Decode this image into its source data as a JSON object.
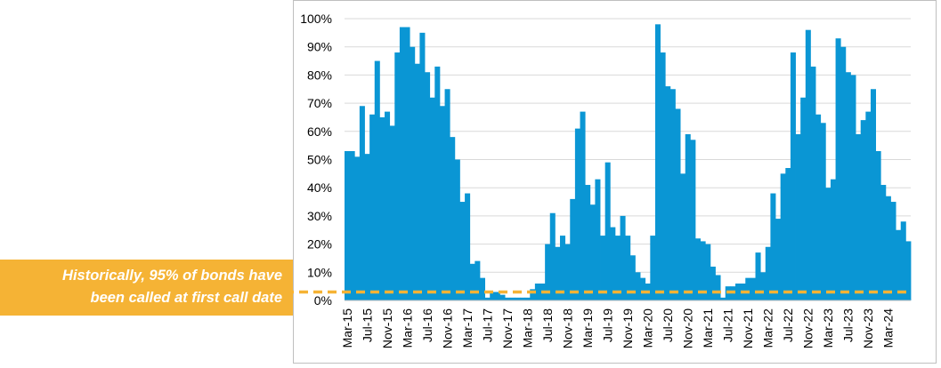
{
  "chart_data": {
    "type": "bar",
    "title": "",
    "xlabel": "",
    "ylabel": "",
    "ylim": [
      0,
      100
    ],
    "y_ticks": [
      "0%",
      "10%",
      "20%",
      "30%",
      "40%",
      "50%",
      "60%",
      "70%",
      "80%",
      "90%",
      "100%"
    ],
    "x_tick_labels": [
      "Mar-15",
      "Jul-15",
      "Nov-15",
      "Mar-16",
      "Jul-16",
      "Nov-16",
      "Mar-17",
      "Jul-17",
      "Nov-17",
      "Mar-18",
      "Jul-18",
      "Nov-18",
      "Mar-19",
      "Jul-19",
      "Nov-19",
      "Mar-20",
      "Jul-20",
      "Nov-20",
      "Mar-21",
      "Jul-21",
      "Nov-21",
      "Mar-22",
      "Jul-22",
      "Nov-22",
      "Mar-23",
      "Jul-23",
      "Nov-23",
      "Mar-24"
    ],
    "first_month": "Mar-15",
    "bar_color": "#0a96d4",
    "grid": "horizontal",
    "values": [
      53,
      53,
      51,
      69,
      52,
      66,
      85,
      65,
      67,
      62,
      88,
      97,
      97,
      90,
      84,
      95,
      81,
      72,
      83,
      69,
      75,
      58,
      50,
      35,
      38,
      13,
      14,
      8,
      1,
      3,
      3,
      2,
      1,
      1,
      1,
      1,
      1,
      4,
      6,
      6,
      20,
      31,
      19,
      23,
      20,
      36,
      61,
      67,
      41,
      34,
      43,
      23,
      49,
      26,
      23,
      30,
      23,
      16,
      10,
      8,
      6,
      23,
      98,
      88,
      76,
      75,
      68,
      45,
      59,
      57,
      22,
      21,
      20,
      12,
      9,
      1,
      5,
      5,
      6,
      6,
      8,
      8,
      17,
      10,
      19,
      38,
      29,
      45,
      47,
      88,
      59,
      72,
      96,
      83,
      66,
      63,
      40,
      43,
      93,
      90,
      81,
      80,
      59,
      64,
      67,
      75,
      53,
      41,
      37,
      35,
      25,
      28,
      21
    ],
    "reference_line": {
      "value": 3,
      "color": "#f5b335"
    }
  },
  "callout": {
    "line1": "Historically, 95% of bonds have",
    "line2": "been called at first call date"
  }
}
